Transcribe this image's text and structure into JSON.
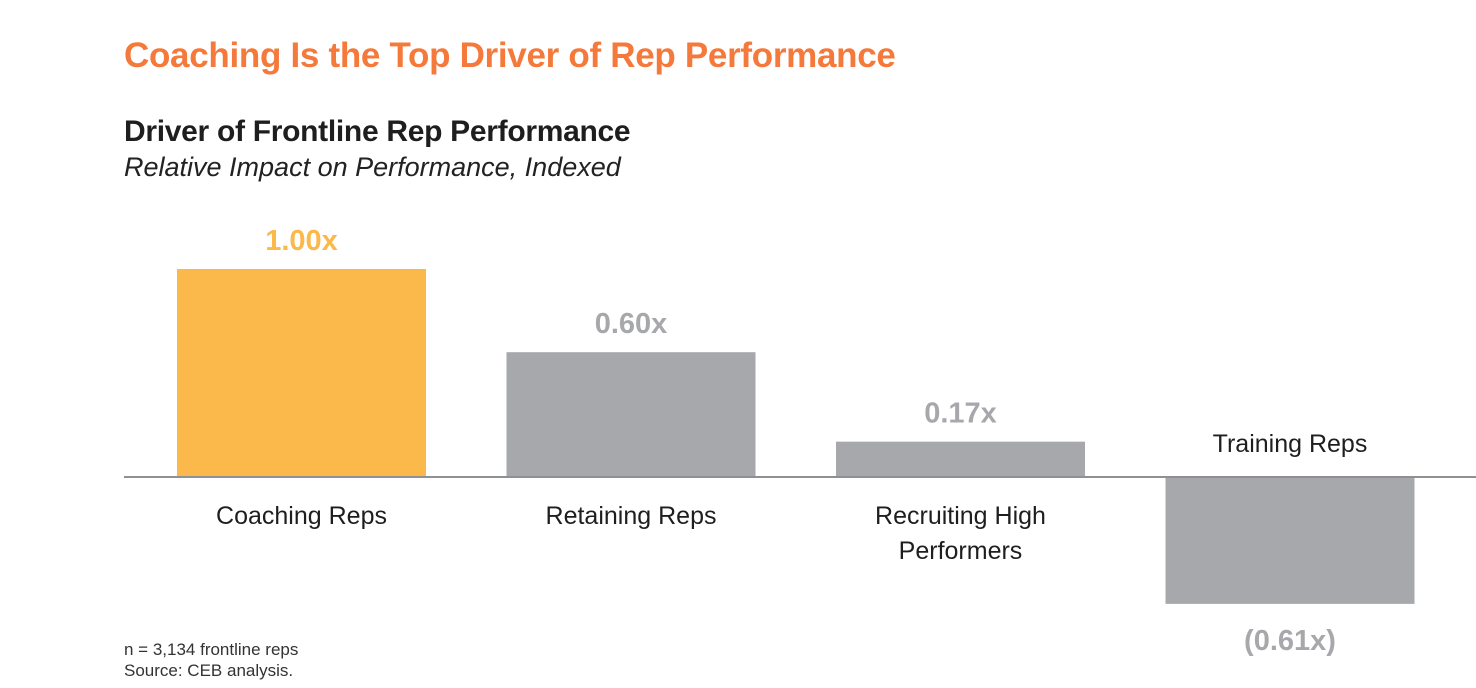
{
  "headline": "Coaching Is the Top Driver of Rep Performance",
  "footnote": {
    "n": "n = 3,134 frontline reps",
    "source": "Source: CEB analysis."
  },
  "colors": {
    "headline": "#f5793a",
    "highlight_bar": "#fcb94b",
    "other_bar": "#a7a8ab",
    "axis": "#8f9094"
  },
  "chart_data": {
    "type": "bar",
    "title": "Driver of Frontline Rep Performance",
    "subtitle": "Relative Impact on Performance, Indexed",
    "categories": [
      "Coaching Reps",
      "Retaining Reps",
      "Recruiting High Performers",
      "Training Reps"
    ],
    "values": [
      1.0,
      0.6,
      0.17,
      -0.61
    ],
    "data_labels": [
      "1.00x",
      "0.60x",
      "0.17x",
      "(0.61x)"
    ],
    "highlight_index": 0,
    "xlabel": "",
    "ylabel": "",
    "ylim": [
      -0.61,
      1.0
    ],
    "grid": false,
    "legend": "none"
  }
}
